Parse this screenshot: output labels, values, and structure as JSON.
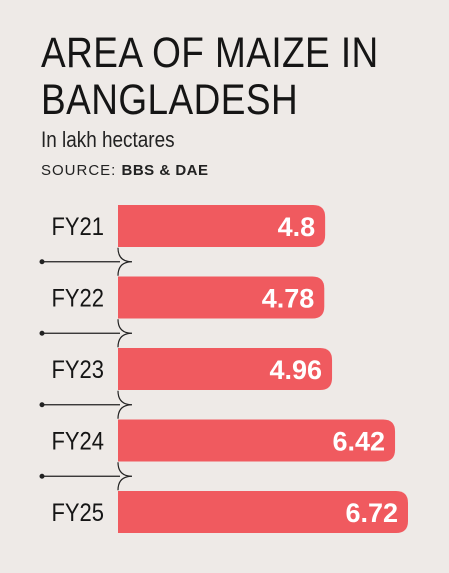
{
  "title_line1": "AREA OF MAIZE IN",
  "title_line2": "BANGLADESH",
  "subtitle": "In lakh hectares",
  "source_label": "SOURCE:",
  "source_value": "BBS & DAE",
  "colors": {
    "bar": "#f05a5f",
    "background": "#eeeae7",
    "text": "#151515",
    "bar_label": "#ffffff"
  },
  "chart_data": {
    "type": "bar",
    "orientation": "horizontal",
    "categories": [
      "FY21",
      "FY22",
      "FY23",
      "FY24",
      "FY25"
    ],
    "values": [
      4.8,
      4.78,
      4.96,
      6.42,
      6.72
    ],
    "value_labels": [
      "4.8",
      "4.78",
      "4.96",
      "6.42",
      "6.72"
    ],
    "unit": "lakh hectares",
    "xlim": [
      0,
      6.72
    ],
    "grid": false,
    "legend": "none"
  }
}
